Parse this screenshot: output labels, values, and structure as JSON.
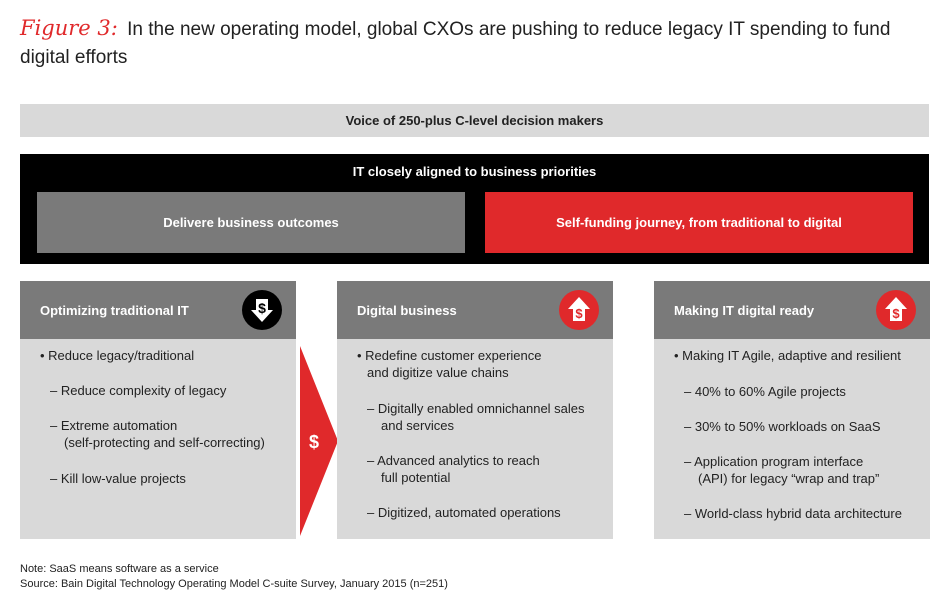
{
  "title": {
    "figure_label": "Figure 3:",
    "line1": "In the new operating model, global CXOs are pushing to reduce legacy IT spending to fund",
    "line2": "digital efforts"
  },
  "banner": {
    "text": "Voice of 250-plus C-level decision makers"
  },
  "aligned": {
    "heading": "IT closely aligned to business priorities",
    "left_box": "Delivere business outcomes",
    "right_box": "Self-funding journey, from traditional to digital"
  },
  "columns": [
    {
      "header": "Optimizing traditional IT",
      "icon": "dollar-down-arrow-icon",
      "lines": [
        "• Reduce legacy/traditional",
        "– Reduce complexity of legacy",
        "– Extreme automation",
        "(self-protecting and self-correcting)",
        "– Kill low-value projects"
      ]
    },
    {
      "header": "Digital business",
      "icon": "dollar-up-arrow-icon",
      "lines": [
        "• Redefine customer experience",
        "and digitize value chains",
        "– Digitally enabled omnichannel sales",
        "and services",
        "– Advanced analytics to reach",
        "full potential",
        "– Digitized, automated operations"
      ]
    },
    {
      "header": "Making IT digital ready",
      "icon": "dollar-up-arrow-icon",
      "lines": [
        "• Making IT Agile, adaptive and resilient",
        "– 40% to 60% Agile projects",
        "– 30% to 50% workloads on SaaS",
        "– Application program interface",
        "(API) for legacy “wrap and trap”",
        "– World-class hybrid data architecture"
      ]
    }
  ],
  "arrow": {
    "symbol": "$",
    "icon": "red-chevron-arrow-icon"
  },
  "notes": {
    "note": "Note: SaaS means software as a service",
    "source": "Source: Bain Digital Technology Operating Model C-suite Survey, January 2015 (n=251)"
  },
  "colors": {
    "accent_red": "#e0292b",
    "grey_dark": "#7a7a7a",
    "grey_light": "#d9d9d9",
    "black": "#000000"
  }
}
